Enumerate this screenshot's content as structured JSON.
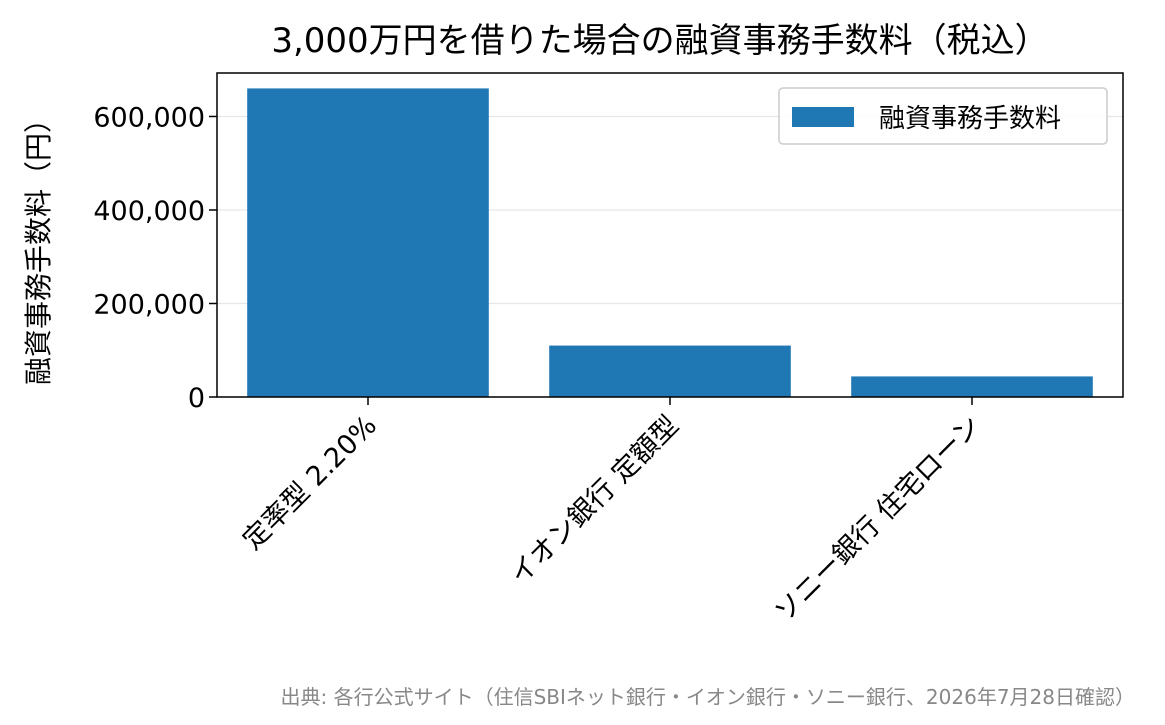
{
  "chart_data": {
    "type": "bar",
    "title": "3,000万円を借りた場合の融資事務手数料（税込）",
    "ylabel": "融資事務手数料（円）",
    "xlabel": "",
    "categories": [
      "定率型 2.20%",
      "イオン銀行 定額型",
      "ソニー銀行 住宅ローン"
    ],
    "series": [
      {
        "name": "融資事務手数料",
        "values": [
          660000,
          110000,
          44000
        ]
      }
    ],
    "ylim": [
      0,
      693000
    ],
    "yticks": [
      0,
      200000,
      400000,
      600000
    ],
    "ytick_labels": [
      "0",
      "200,000",
      "400,000",
      "600,000"
    ],
    "grid": true,
    "grid_axis": "y",
    "legend_position": "top-right",
    "bar_color": "#1f77b4"
  },
  "source_note": "出典: 各行公式サイト（住信SBIネット銀行・イオン銀行・ソニー銀行、2026年7月28日確認）"
}
